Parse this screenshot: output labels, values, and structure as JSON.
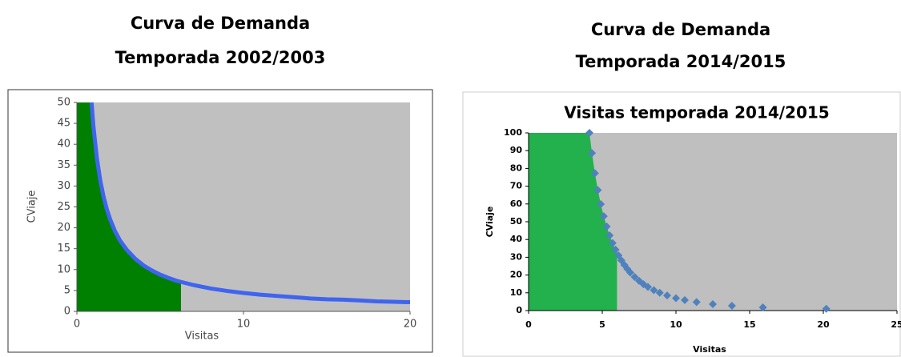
{
  "headings": [
    {
      "lines": [
        "Curva de Demanda",
        "Temporada 2002/2003"
      ]
    },
    {
      "lines": [
        "Curva de Demanda",
        "Temporada 2014/2015"
      ]
    }
  ],
  "chart_data": [
    {
      "type": "line",
      "xlabel": "Visitas",
      "ylabel": "CViaje",
      "x": [
        0.88,
        1,
        1.2,
        1.4,
        1.6,
        1.8,
        2,
        2.3,
        2.6,
        3,
        3.5,
        4,
        4.5,
        5,
        5.5,
        6,
        6.5,
        7,
        8,
        9,
        10,
        11,
        12,
        13,
        14,
        15,
        16,
        17,
        18,
        19,
        20
      ],
      "values": [
        50,
        44,
        36.7,
        31.4,
        27.5,
        24.4,
        22,
        19.1,
        16.9,
        14.7,
        12.6,
        11,
        9.8,
        8.8,
        8,
        7.3,
        6.8,
        6.3,
        5.5,
        4.9,
        4.4,
        4,
        3.7,
        3.4,
        3.1,
        2.9,
        2.8,
        2.6,
        2.4,
        2.3,
        2.2
      ],
      "color": "#3f64f0",
      "fill_xmax": 6.25,
      "fill_color": "#008000",
      "background": "#c0c0c0",
      "xlim": [
        0,
        20
      ],
      "ylim": [
        0,
        50
      ],
      "xticks": [
        0,
        10,
        20
      ],
      "yticks": [
        0,
        5,
        10,
        15,
        20,
        25,
        30,
        35,
        40,
        45,
        50
      ]
    },
    {
      "type": "scatter",
      "title": "Visitas temporada 2014/2015",
      "xlabel": "Visitas",
      "ylabel": "CViaje",
      "x": [
        4.13,
        4.3,
        4.5,
        4.7,
        4.9,
        5.1,
        5.3,
        5.5,
        5.7,
        5.9,
        6.1,
        6.3,
        6.5,
        6.7,
        6.9,
        7.2,
        7.5,
        7.8,
        8.1,
        8.5,
        8.9,
        9.4,
        10,
        10.6,
        11.4,
        12.5,
        13.8,
        15.9,
        20.2
      ],
      "values": [
        100,
        88.6,
        77.3,
        67.8,
        59.9,
        53.1,
        47.3,
        42.3,
        38.0,
        34.3,
        31.0,
        28.2,
        25.7,
        23.4,
        21.4,
        18.9,
        16.7,
        14.8,
        13.3,
        11.5,
        10.0,
        8.5,
        7.0,
        5.9,
        4.8,
        3.6,
        2.7,
        1.8,
        1.0
      ],
      "color": "#4f81bd",
      "fill_xmax": 6,
      "fill_color": "#22b14c",
      "background": "#bfbfbf",
      "xlim": [
        0,
        25
      ],
      "ylim": [
        0,
        100
      ],
      "xticks": [
        0,
        5,
        10,
        15,
        20,
        25
      ],
      "yticks": [
        0,
        10,
        20,
        30,
        40,
        50,
        60,
        70,
        80,
        90,
        100
      ]
    }
  ]
}
